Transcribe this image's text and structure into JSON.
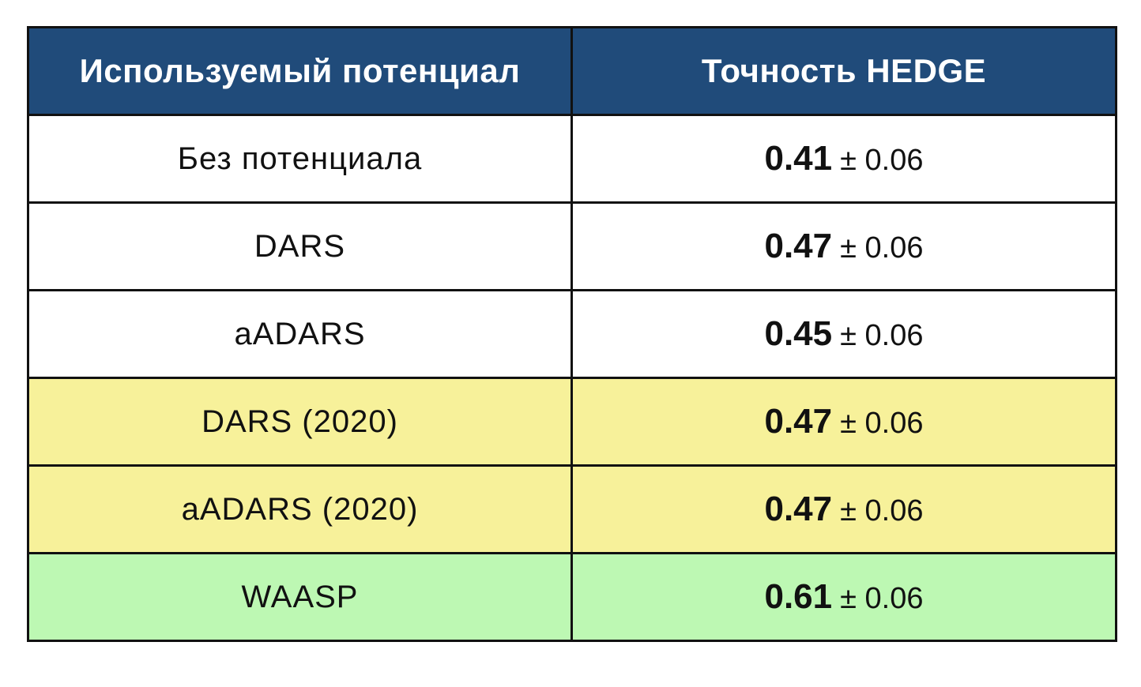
{
  "table": {
    "headers": [
      "Используемый потенциал",
      "Точность HEDGE"
    ],
    "colors": {
      "header_bg": "#204b7a",
      "header_text": "#ffffff",
      "row_white": "#ffffff",
      "row_yellow": "#f7f19a",
      "row_green": "#bdf8b3",
      "border": "#111111"
    },
    "rows": [
      {
        "potential": "Без потенциала",
        "mean": "0.41",
        "error": "± 0.06",
        "highlight": "white"
      },
      {
        "potential": "DARS",
        "mean": "0.47",
        "error": "± 0.06",
        "highlight": "white"
      },
      {
        "potential": "aADARS",
        "mean": "0.45",
        "error": "± 0.06",
        "highlight": "white"
      },
      {
        "potential": "DARS (2020)",
        "mean": "0.47",
        "error": "± 0.06",
        "highlight": "yellow"
      },
      {
        "potential": "aADARS (2020)",
        "mean": "0.47",
        "error": "± 0.06",
        "highlight": "yellow"
      },
      {
        "potential": "WAASP",
        "mean": "0.61",
        "error": "± 0.06",
        "highlight": "green"
      }
    ]
  }
}
